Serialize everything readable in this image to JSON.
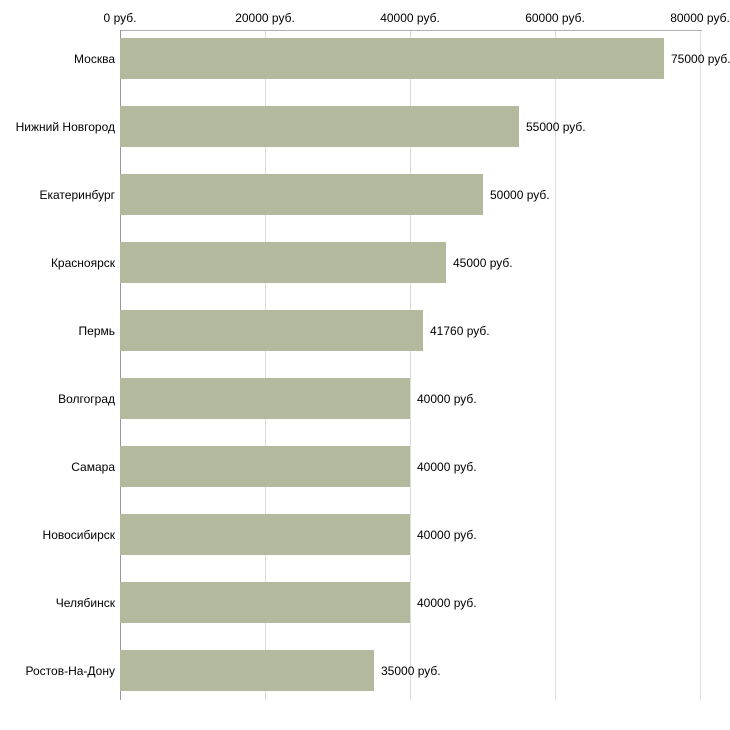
{
  "chart_data": {
    "type": "bar",
    "orientation": "horizontal",
    "title": "",
    "xlabel": "",
    "ylabel": "",
    "categories": [
      "Москва",
      "Нижний Новгород",
      "Екатеринбург",
      "Красноярск",
      "Пермь",
      "Волгоград",
      "Самара",
      "Новосибирск",
      "Челябинск",
      "Ростов-На-Дону"
    ],
    "values": [
      75000,
      55000,
      50000,
      45000,
      41760,
      40000,
      40000,
      40000,
      40000,
      35000
    ],
    "value_labels": [
      "75000 руб.",
      "55000 руб.",
      "50000 руб.",
      "45000 руб.",
      "41760 руб.",
      "40000 руб.",
      "40000 руб.",
      "40000 руб.",
      "40000 руб.",
      "35000 руб."
    ],
    "x_ticks": [
      0,
      20000,
      40000,
      60000,
      80000
    ],
    "x_tick_labels": [
      "0 руб.",
      "20000 руб.",
      "40000 руб.",
      "60000 руб.",
      "80000 руб."
    ],
    "xlim": [
      0,
      80000
    ],
    "grid": true,
    "legend": "none",
    "bar_color": "#b3b99c",
    "gridline_color": "#dcdcdc",
    "axis_color": "#999999",
    "background_color": "#ffffff"
  }
}
